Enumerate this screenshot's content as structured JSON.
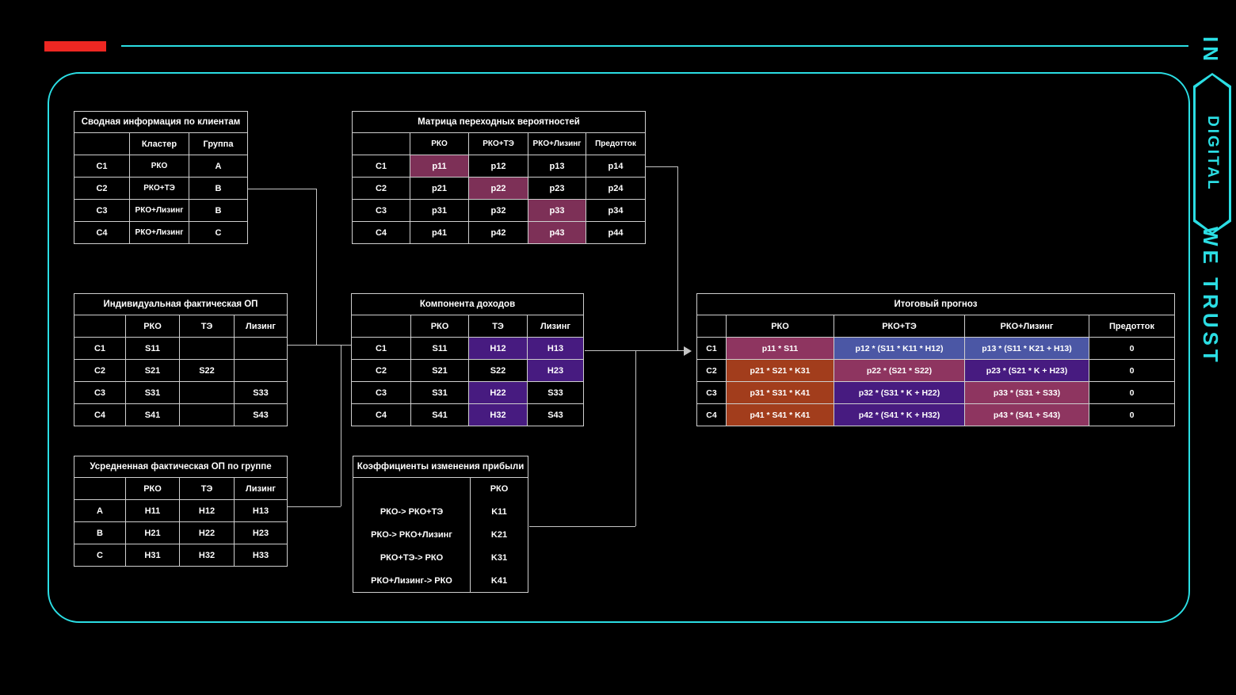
{
  "brand": {
    "line1": "IN",
    "badge": "DIGITAL",
    "line2": "WE TRUST"
  },
  "colors": {
    "accent": "#2bdee4",
    "red": "#ee2722",
    "border": "#cfcfcf",
    "rose": "#8e3560",
    "rose_matrix": "#7d3057",
    "purple": "#471b80",
    "blue": "#4b57a5",
    "rust": "#a23d1c"
  },
  "tables": {
    "summary": {
      "title": "Сводная информация по клиентам",
      "headers": [
        "",
        "Кластер",
        "Группа"
      ],
      "rows": [
        [
          "C1",
          "РКО",
          "A"
        ],
        [
          "C2",
          "РКО+ТЭ",
          "B"
        ],
        [
          "C3",
          "РКО+Лизинг",
          "B"
        ],
        [
          "C4",
          "РКО+Лизинг",
          "C"
        ]
      ]
    },
    "matrix": {
      "title": "Матрица переходных вероятностей",
      "headers": [
        "",
        "РКО",
        "РКО+ТЭ",
        "РКО+Лизинг",
        "Предотток"
      ],
      "rows": [
        [
          "C1",
          {
            "t": "p11",
            "bg": "rose_matrix"
          },
          "p12",
          "p13",
          "p14"
        ],
        [
          "C2",
          "p21",
          {
            "t": "p22",
            "bg": "rose_matrix"
          },
          "p23",
          "p24"
        ],
        [
          "C3",
          "p31",
          "p32",
          {
            "t": "p33",
            "bg": "rose_matrix"
          },
          "p34"
        ],
        [
          "C4",
          "p41",
          "p42",
          {
            "t": "p43",
            "bg": "rose_matrix"
          },
          "p44"
        ]
      ]
    },
    "individual": {
      "title": "Индивидуальная фактическая ОП",
      "headers": [
        "",
        "РКО",
        "ТЭ",
        "Лизинг"
      ],
      "rows": [
        [
          "C1",
          "S11",
          "",
          ""
        ],
        [
          "C2",
          "S21",
          "S22",
          ""
        ],
        [
          "C3",
          "S31",
          "",
          "S33"
        ],
        [
          "C4",
          "S41",
          "",
          "S43"
        ]
      ]
    },
    "income": {
      "title": "Компонента доходов",
      "headers": [
        "",
        "РКО",
        "ТЭ",
        "Лизинг"
      ],
      "rows": [
        [
          "C1",
          "S11",
          {
            "t": "H12",
            "bg": "purple"
          },
          {
            "t": "H13",
            "bg": "purple"
          }
        ],
        [
          "C2",
          "S21",
          "S22",
          {
            "t": "H23",
            "bg": "purple"
          }
        ],
        [
          "C3",
          "S31",
          {
            "t": "H22",
            "bg": "purple"
          },
          "S33"
        ],
        [
          "C4",
          "S41",
          {
            "t": "H32",
            "bg": "purple"
          },
          "S43"
        ]
      ]
    },
    "averaged": {
      "title": "Усредненная фактическая ОП по группе",
      "headers": [
        "",
        "РКО",
        "ТЭ",
        "Лизинг"
      ],
      "rows": [
        [
          "A",
          "H11",
          "H12",
          "H13"
        ],
        [
          "B",
          "H21",
          "H22",
          "H23"
        ],
        [
          "C",
          "H31",
          "H32",
          "H33"
        ]
      ]
    },
    "coefficients": {
      "title": "Коэффициенты изменения прибыли",
      "headers": [
        "",
        "РКО"
      ],
      "rows": [
        [
          "РКО-> РКО+ТЭ",
          "K11"
        ],
        [
          "РКО-> РКО+Лизинг",
          "K21"
        ],
        [
          "РКО+ТЭ-> РКО",
          "K31"
        ],
        [
          "РКО+Лизинг-> РКО",
          "K41"
        ]
      ]
    },
    "forecast": {
      "title": "Итоговый прогноз",
      "headers": [
        "",
        "РКО",
        "РКО+ТЭ",
        "РКО+Лизинг",
        "Предотток"
      ],
      "rows": [
        [
          "C1",
          {
            "t": "p11 * S11",
            "bg": "rose"
          },
          {
            "t": "p12 * (S11 * K11 * H12)",
            "bg": "blue"
          },
          {
            "t": "p13 * (S11 * K21 + H13)",
            "bg": "blue"
          },
          "0"
        ],
        [
          "C2",
          {
            "t": "p21 * S21 * K31",
            "bg": "rust"
          },
          {
            "t": "p22 * (S21 * S22)",
            "bg": "rose"
          },
          {
            "t": "p23 * (S21 * K + H23)",
            "bg": "purple"
          },
          "0"
        ],
        [
          "C3",
          {
            "t": "p31 * S31 * K41",
            "bg": "rust"
          },
          {
            "t": "p32 * (S31 * K + H22)",
            "bg": "purple"
          },
          {
            "t": "p33 * (S31 + S33)",
            "bg": "rose"
          },
          "0"
        ],
        [
          "C4",
          {
            "t": "p41 * S41 * K41",
            "bg": "rust"
          },
          {
            "t": "p42 * (S41 * K + H32)",
            "bg": "purple"
          },
          {
            "t": "p43 * (S41 + S43)",
            "bg": "rose"
          },
          "0"
        ]
      ]
    }
  }
}
